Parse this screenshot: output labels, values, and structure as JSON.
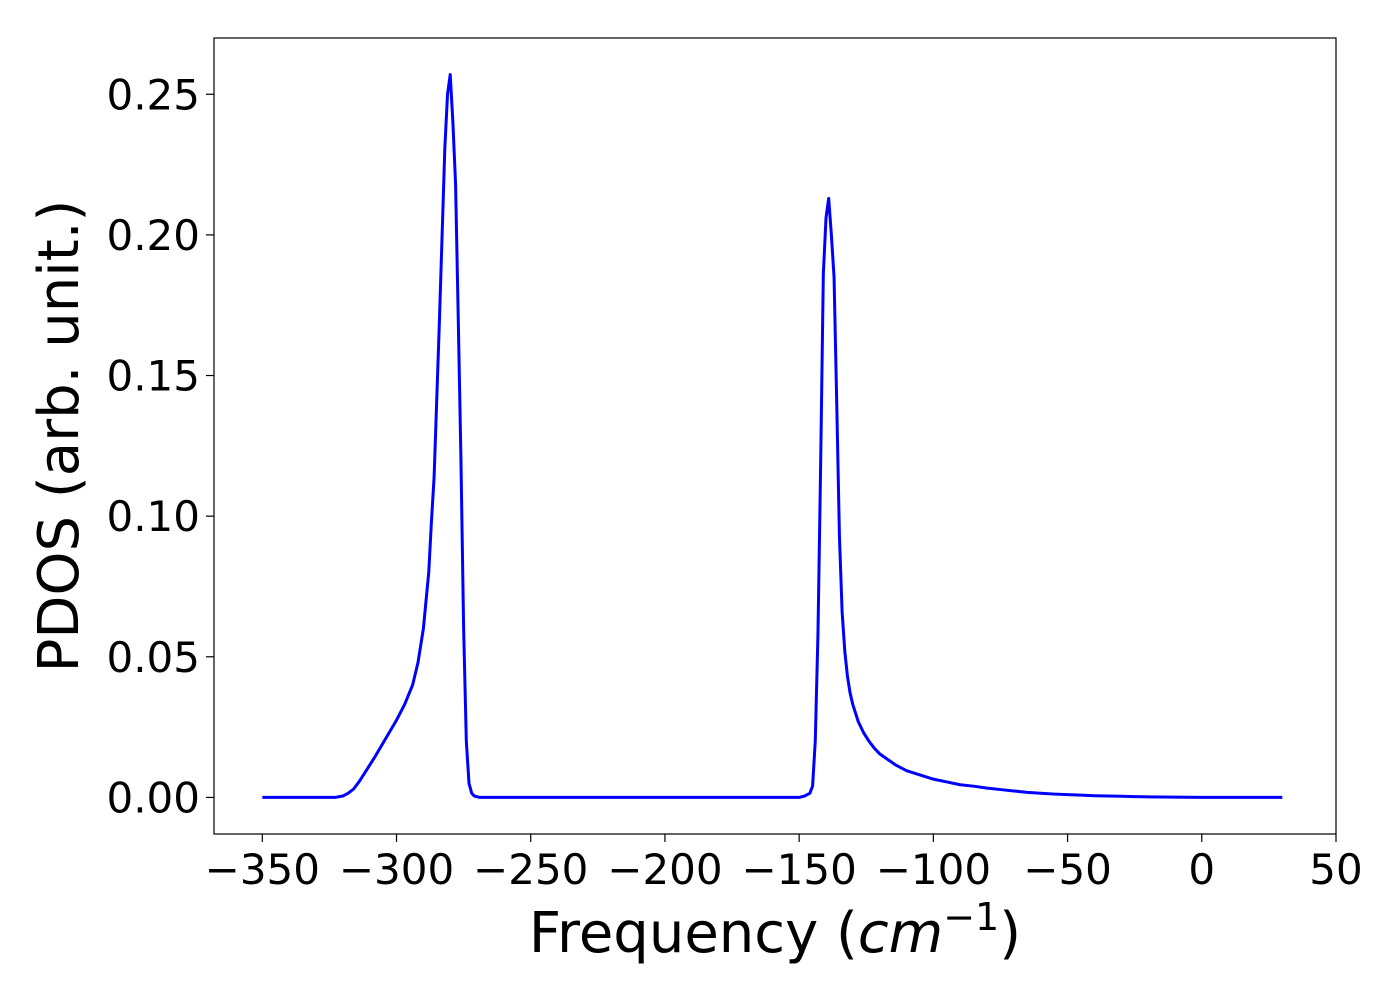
{
  "chart_data": {
    "type": "line",
    "title": "",
    "xlabel": "Frequency (",
    "xlabel_math": "cm",
    "xlabel_exponent": "−1",
    "xlabel_close": ")",
    "ylabel": "PDOS (arb. unit.)",
    "xlim": [
      -368,
      50
    ],
    "ylim": [
      -0.013,
      0.27
    ],
    "xticks": [
      -350,
      -300,
      -250,
      -200,
      -150,
      -100,
      -50,
      0,
      50
    ],
    "xtick_labels": [
      "−350",
      "−300",
      "−250",
      "−200",
      "−150",
      "−100",
      "−50",
      "0",
      "50"
    ],
    "yticks": [
      0.0,
      0.05,
      0.1,
      0.15,
      0.2,
      0.25
    ],
    "ytick_labels": [
      "0.00",
      "0.05",
      "0.10",
      "0.15",
      "0.20",
      "0.25"
    ],
    "grid": false,
    "series": [
      {
        "color": "#0000ff",
        "x": [
          -350,
          -340,
          -330,
          -323,
          -320,
          -318,
          -316,
          -314,
          -312,
          -308,
          -304,
          -300,
          -297,
          -294,
          -292,
          -290,
          -288,
          -287,
          -286,
          -284,
          -282,
          -281,
          -280,
          -279,
          -278,
          -277,
          -276,
          -275,
          -274,
          -273,
          -272,
          -271,
          -269,
          -260,
          -240,
          -220,
          -200,
          -180,
          -160,
          -150,
          -148,
          -146,
          -145,
          -144,
          -143,
          -142,
          -141,
          -140,
          -139,
          -138,
          -137,
          -136,
          -135,
          -134,
          -133,
          -132,
          -131,
          -130,
          -128,
          -126,
          -124,
          -122,
          -120,
          -117,
          -114,
          -110,
          -105,
          -100,
          -95,
          -90,
          -85,
          -80,
          -75,
          -70,
          -65,
          -60,
          -55,
          -50,
          -45,
          -40,
          -35,
          -30,
          -25,
          -20,
          -15,
          -10,
          -5,
          0,
          10,
          20,
          30
        ],
        "y": [
          0.0,
          0.0,
          0.0,
          0.0,
          0.0005,
          0.0015,
          0.003,
          0.0055,
          0.0085,
          0.0145,
          0.021,
          0.0275,
          0.033,
          0.04,
          0.048,
          0.06,
          0.08,
          0.098,
          0.114,
          0.17,
          0.231,
          0.25,
          0.257,
          0.24,
          0.218,
          0.17,
          0.12,
          0.06,
          0.02,
          0.005,
          0.0015,
          0.0005,
          0.0,
          0.0,
          0.0,
          0.0,
          0.0,
          0.0,
          0.0,
          0.0,
          0.0005,
          0.0015,
          0.004,
          0.02,
          0.058,
          0.118,
          0.186,
          0.206,
          0.213,
          0.2,
          0.185,
          0.14,
          0.093,
          0.066,
          0.052,
          0.043,
          0.037,
          0.033,
          0.027,
          0.023,
          0.02,
          0.0175,
          0.0155,
          0.0135,
          0.0115,
          0.0095,
          0.008,
          0.0065,
          0.0055,
          0.0045,
          0.004,
          0.0033,
          0.0028,
          0.0023,
          0.0018,
          0.0015,
          0.0012,
          0.001,
          0.0008,
          0.0006,
          0.0005,
          0.0004,
          0.0003,
          0.0002,
          0.00015,
          0.0001,
          5e-05,
          0.0,
          0.0,
          0.0,
          0.0
        ]
      }
    ]
  }
}
